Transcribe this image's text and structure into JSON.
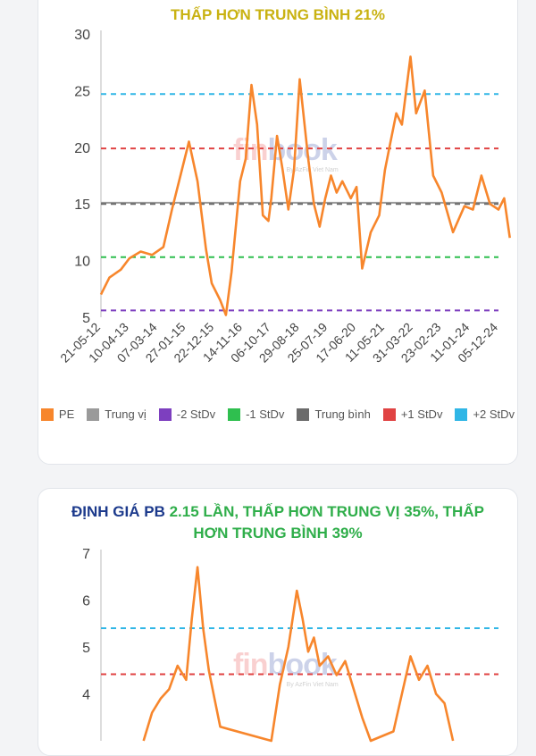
{
  "pe_card": {
    "title": "THẤP HƠN TRUNG BÌNH 21%"
  },
  "pb_card": {
    "title_prefix": "ĐỊNH GIÁ PB",
    "title_rest_line1": "2.15 LẦN, THẤP HƠN TRUNG VỊ 35%, THẤP",
    "title_line2": "HƠN TRUNG BÌNH 39%"
  },
  "watermark": {
    "fin": "fin",
    "book": "book",
    "tag": "By AzFin Viet Nam"
  },
  "colors": {
    "pe": "#f7862c",
    "median": "#9a9a9a",
    "minus2": "#7d3fbf",
    "minus1": "#2fbf4f",
    "mean": "#6b6b6b",
    "plus1": "#e04343",
    "plus2": "#30b6e6",
    "title_yellow": "#c9b212",
    "title_blue": "#1c3a8c",
    "title_green": "#2fae4a"
  },
  "chart_data": [
    {
      "type": "line",
      "y_ticks": [
        5,
        10,
        15,
        20,
        25,
        30
      ],
      "ylim": [
        5,
        30
      ],
      "x_ticks": [
        "21-05-12",
        "10-04-13",
        "07-03-14",
        "27-01-15",
        "22-12-15",
        "14-11-16",
        "06-10-17",
        "29-08-18",
        "25-07-19",
        "17-06-20",
        "11-05-21",
        "31-03-22",
        "23-02-23",
        "11-01-24",
        "05-12-24"
      ],
      "legend_position": "bottom",
      "reference_lines": [
        {
          "name": "Trung vị",
          "value": 15.1,
          "color_key": "median",
          "style": "solid"
        },
        {
          "name": "-2 StDv",
          "value": 5.6,
          "color_key": "minus2",
          "style": "dashed"
        },
        {
          "name": "-1 StDv",
          "value": 10.3,
          "color_key": "minus1",
          "style": "dashed"
        },
        {
          "name": "Trung bình",
          "value": 15.0,
          "color_key": "mean",
          "style": "dashed"
        },
        {
          "name": "+1 StDv",
          "value": 19.9,
          "color_key": "plus1",
          "style": "dashed"
        },
        {
          "name": "+2 StDv",
          "value": 24.7,
          "color_key": "plus2",
          "style": "dashed"
        }
      ],
      "legend": [
        "PE",
        "Trung vị",
        "-2 StDv",
        "-1 StDv",
        "Trung bình",
        "+1 StDv",
        "+2 StDv"
      ],
      "series": [
        {
          "name": "PE",
          "color_key": "pe",
          "x": [
            0,
            0.3,
            0.7,
            1,
            1.4,
            1.8,
            2.2,
            2.5,
            2.8,
            3.1,
            3.4,
            3.7,
            3.9,
            4.2,
            4.4,
            4.6,
            4.9,
            5.1,
            5.3,
            5.5,
            5.7,
            5.9,
            6.0,
            6.2,
            6.4,
            6.6,
            6.8,
            7.0,
            7.3,
            7.5,
            7.7,
            7.9,
            8.1,
            8.3,
            8.5,
            8.8,
            9.0,
            9.2,
            9.5,
            9.8,
            10.0,
            10.2,
            10.4,
            10.6,
            10.9,
            11.1,
            11.4,
            11.7,
            12.0,
            12.4,
            12.8,
            13.1,
            13.4,
            13.7,
            14.0,
            14.2,
            14.4
          ],
          "values": [
            7,
            8.5,
            9.2,
            10.2,
            10.8,
            10.5,
            11.2,
            14.5,
            17.5,
            20.5,
            17.0,
            11.0,
            8.0,
            6.5,
            5.2,
            9.0,
            17.0,
            19.0,
            25.5,
            22.0,
            14.0,
            13.5,
            15.5,
            21.0,
            18.0,
            14.5,
            18.0,
            26.0,
            19.0,
            15.0,
            13.0,
            15.5,
            17.5,
            16.0,
            17.0,
            15.5,
            16.5,
            9.3,
            12.5,
            14.0,
            18.0,
            20.5,
            23.0,
            22.0,
            28.0,
            23.0,
            25.0,
            17.5,
            16.0,
            12.5,
            14.8,
            14.5,
            17.5,
            15.0,
            14.5,
            15.5,
            12.0
          ]
        }
      ]
    },
    {
      "type": "line",
      "y_ticks": [
        4,
        5,
        6,
        7
      ],
      "ylim": [
        3,
        7
      ],
      "reference_lines": [
        {
          "name": "+2 StDv",
          "value": 5.4,
          "color_key": "plus2",
          "style": "dashed"
        },
        {
          "name": "+1 StDv",
          "value": 4.42,
          "color_key": "plus1",
          "style": "dashed"
        }
      ],
      "series": [
        {
          "name": "PB",
          "color_key": "pe",
          "x": [
            1.5,
            1.8,
            2.1,
            2.4,
            2.7,
            3.0,
            3.2,
            3.4,
            3.6,
            3.8,
            4.0,
            4.2,
            6.0,
            6.3,
            6.6,
            6.9,
            7.1,
            7.3,
            7.5,
            7.7,
            8.0,
            8.3,
            8.6,
            8.9,
            9.2,
            9.5,
            10.3,
            10.6,
            10.9,
            11.2,
            11.5,
            11.8,
            12.1,
            12.4
          ],
          "values": [
            3.0,
            3.6,
            3.9,
            4.1,
            4.6,
            4.3,
            5.6,
            6.7,
            5.4,
            4.5,
            3.9,
            3.3,
            3.0,
            4.2,
            5.0,
            6.2,
            5.6,
            4.9,
            5.2,
            4.6,
            4.8,
            4.4,
            4.7,
            4.1,
            3.5,
            3.0,
            3.2,
            4.0,
            4.8,
            4.3,
            4.6,
            4.0,
            3.8,
            3.0
          ]
        }
      ]
    }
  ]
}
